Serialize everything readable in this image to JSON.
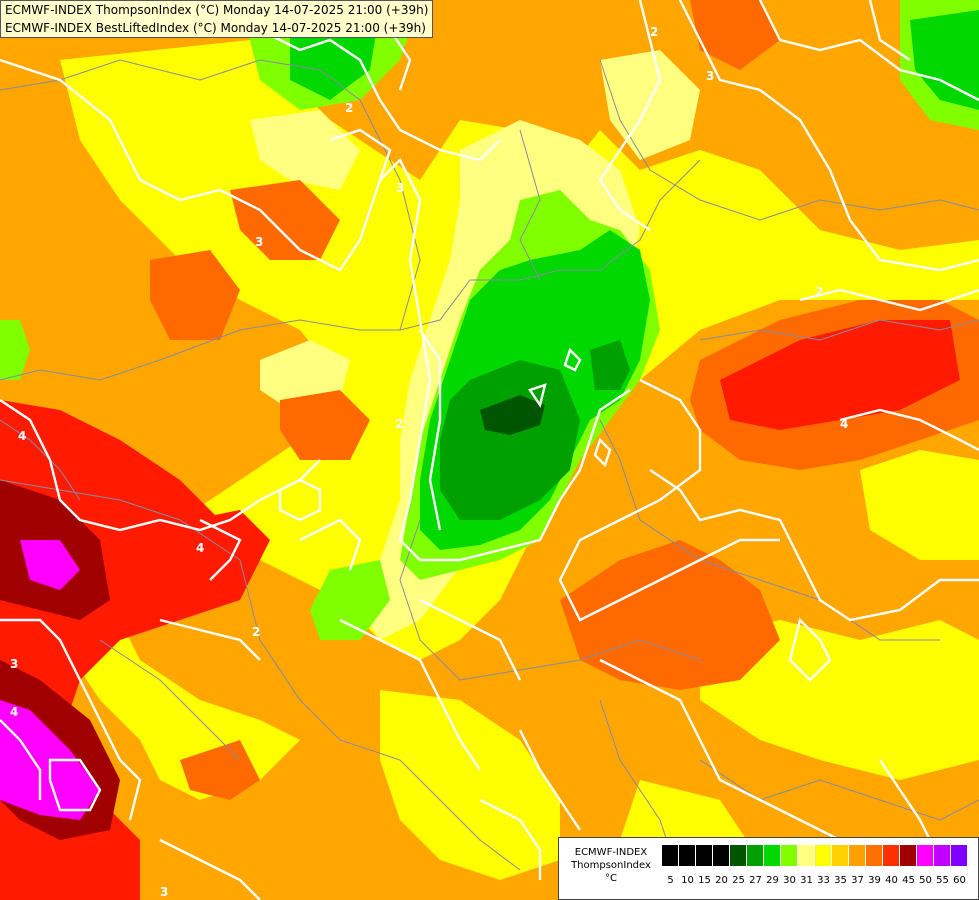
{
  "titles": {
    "line1": "ECMWF-INDEX ThompsonIndex (°C) Monday 14-07-2025 21:00 (+39h)",
    "line2": "ECMWF-INDEX BestLiftedIndex (°C) Monday 14-07-2025 21:00 (+39h)"
  },
  "legend": {
    "line1": "ECMWF-INDEX",
    "line2": "ThompsonIndex",
    "line3": "°C",
    "colors": [
      "#000000",
      "#000000",
      "#000000",
      "#000000",
      "#005500",
      "#00a000",
      "#00d800",
      "#80ff00",
      "#ffff80",
      "#ffff40",
      "#ffff00",
      "#ffd000",
      "#ffa000",
      "#ff7000",
      "#ff3000",
      "#ff0000",
      "#a00000",
      "#ff00ff",
      "#c000ff",
      "#8000ff",
      "#4000ff",
      "#0000ff"
    ],
    "ticks": [
      "5",
      "10",
      "15",
      "20",
      "25",
      "27",
      "29",
      "30",
      "31",
      "33",
      "35",
      "37",
      "39",
      "40",
      "45",
      "50",
      "55",
      "60"
    ]
  },
  "contour_labels": [
    "2",
    "2",
    "3",
    "3",
    "2",
    "3",
    "2",
    "4",
    "4",
    "3",
    "4",
    "4",
    "2",
    "3"
  ]
}
